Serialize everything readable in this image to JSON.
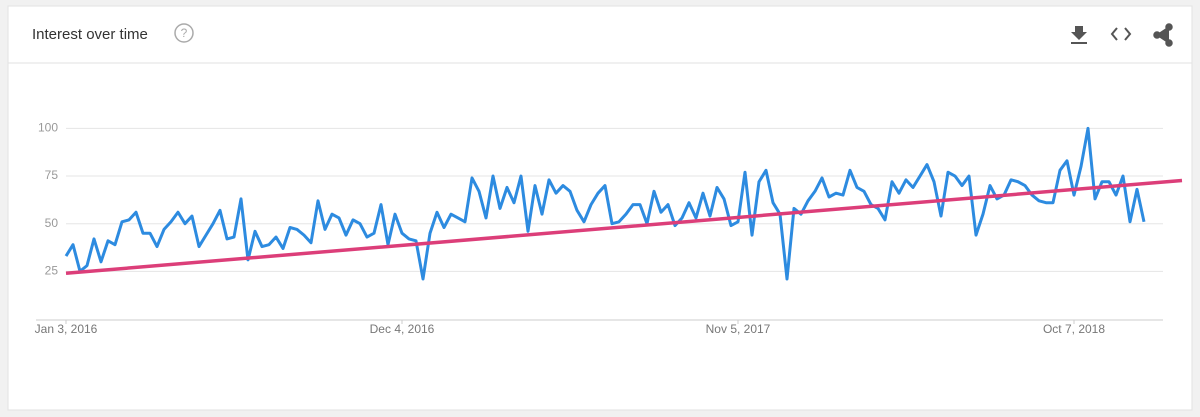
{
  "chart_data": {
    "type": "line",
    "title": "Interest over time",
    "categories": [
      "Jan 3, 2016",
      null,
      null,
      null,
      null,
      null,
      null,
      null,
      null,
      null,
      null,
      null,
      null,
      null,
      null,
      null,
      null,
      null,
      null,
      null,
      null,
      null,
      null,
      null,
      null,
      null,
      null,
      null,
      null,
      null,
      null,
      null,
      null,
      null,
      null,
      null,
      null,
      null,
      null,
      null,
      null,
      null,
      null,
      null,
      null,
      null,
      null,
      null,
      "Dec 4, 2016",
      null,
      null,
      null,
      null,
      null,
      null,
      null,
      null,
      null,
      null,
      null,
      null,
      null,
      null,
      null,
      null,
      null,
      null,
      null,
      null,
      null,
      null,
      null,
      null,
      null,
      null,
      null,
      null,
      null,
      null,
      null,
      null,
      null,
      null,
      null,
      null,
      null,
      null,
      null,
      null,
      null,
      null,
      null,
      null,
      null,
      null,
      null,
      "Nov 5, 2017",
      null,
      null,
      null,
      null,
      null,
      null,
      null,
      null,
      null,
      null,
      null,
      null,
      null,
      null,
      null,
      null,
      null,
      null,
      null,
      null,
      null,
      null,
      null,
      null,
      null,
      null,
      null,
      null,
      null,
      null,
      null,
      null,
      null,
      null,
      null,
      null,
      null,
      null,
      null,
      null,
      null,
      null,
      null,
      null,
      null,
      null,
      null,
      "Oct 7, 2018",
      null,
      null,
      null,
      null,
      null,
      null,
      null,
      null,
      null,
      null
    ],
    "series": [
      {
        "color": "#2d8be0",
        "values": [
          33,
          39,
          25,
          28,
          42,
          30,
          41,
          39,
          51,
          52,
          56,
          45,
          45,
          38,
          47,
          51,
          56,
          50,
          54,
          38,
          44,
          50,
          57,
          42,
          43,
          63,
          31,
          46,
          38,
          39,
          43,
          37,
          48,
          47,
          44,
          40,
          62,
          47,
          55,
          53,
          44,
          52,
          50,
          43,
          45,
          60,
          39,
          55,
          45,
          42,
          41,
          21,
          45,
          56,
          48,
          55,
          53,
          51,
          74,
          67,
          53,
          75,
          58,
          69,
          61,
          75,
          46,
          70,
          55,
          73,
          66,
          70,
          67,
          57,
          51,
          60,
          66,
          70,
          50,
          51,
          55,
          60,
          60,
          50,
          67,
          56,
          60,
          49,
          53,
          61,
          53,
          66,
          54,
          69,
          63,
          49,
          51,
          77,
          44,
          72,
          78,
          61,
          55,
          21,
          58,
          55,
          62,
          67,
          74,
          64,
          66,
          65,
          78,
          69,
          67,
          60,
          58,
          52,
          72,
          66,
          73,
          69,
          75,
          81,
          72,
          54,
          77,
          75,
          70,
          75,
          44,
          55,
          70,
          63,
          65,
          73,
          72,
          70,
          65,
          62,
          61,
          61,
          78,
          83,
          65,
          80,
          100,
          63,
          72,
          72,
          65,
          75,
          51,
          68,
          51
        ]
      }
    ],
    "trend_line": {
      "color": "#dc3e79",
      "values": [
        24,
        71
      ]
    },
    "ylim": [
      0,
      128
    ],
    "yticks": [
      25,
      50,
      75,
      100
    ],
    "grid": true
  }
}
